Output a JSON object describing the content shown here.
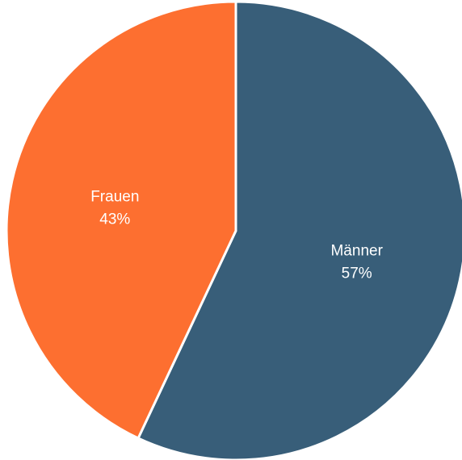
{
  "chart_data": {
    "type": "pie",
    "categories": [
      "Männer",
      "Frauen"
    ],
    "values": [
      57,
      43
    ],
    "value_labels": [
      "57%",
      "43%"
    ],
    "colors": [
      "#385e79",
      "#fd6f30"
    ],
    "start": "top",
    "direction": "clockwise",
    "legend": "none",
    "title": ""
  }
}
